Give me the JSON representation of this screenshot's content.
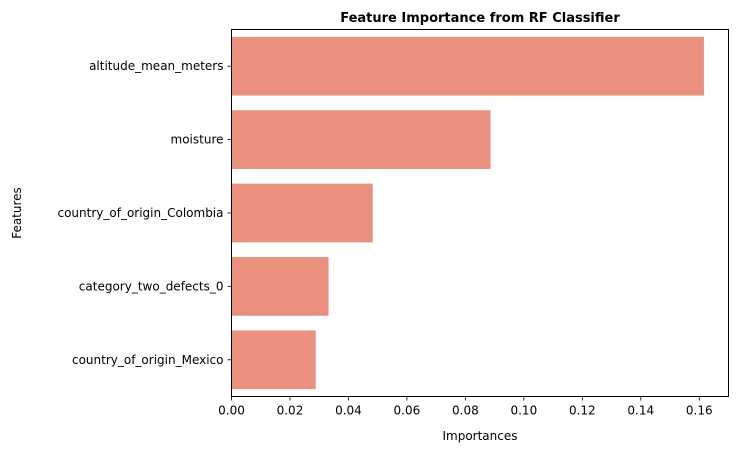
{
  "chart_data": {
    "type": "bar",
    "orientation": "horizontal",
    "title": "Feature Importance from RF Classifier",
    "xlabel": "Importances",
    "ylabel": "Features",
    "categories": [
      "altitude_mean_meters",
      "moisture",
      "country_of_origin_Colombia",
      "category_two_defects_0",
      "country_of_origin_Mexico"
    ],
    "values": [
      0.1616,
      0.0886,
      0.0483,
      0.0332,
      0.0288
    ],
    "xlim": [
      0,
      0.17
    ],
    "xticks": [
      "0.00",
      "0.02",
      "0.04",
      "0.06",
      "0.08",
      "0.10",
      "0.12",
      "0.14",
      "0.16"
    ],
    "bar_color": "#e9907f",
    "grid": false,
    "legend": false
  }
}
